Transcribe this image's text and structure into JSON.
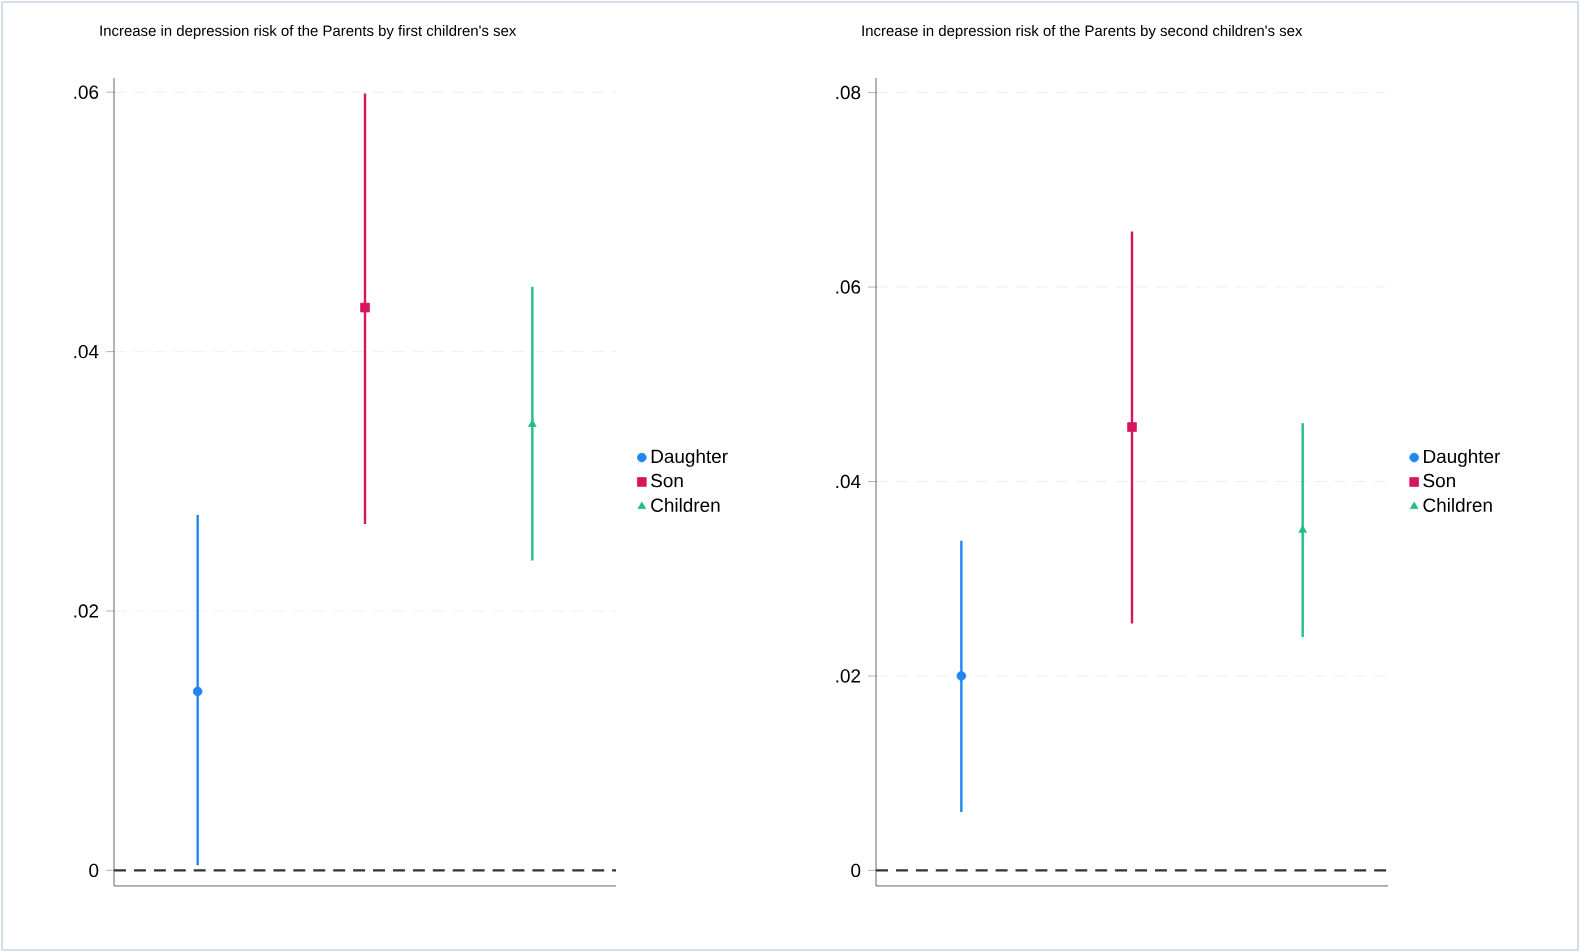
{
  "chart_data": [
    {
      "type": "scatter",
      "title": "Increase in depression risk of the Parents by first children's sex",
      "categories": [
        null,
        null,
        null
      ],
      "series": [
        {
          "name": "Daughter",
          "color": "#1f86f0",
          "marker": "circle",
          "values": [
            0.0138,
            null,
            null
          ],
          "errors": [
            [
              0.0004,
              0.0274
            ],
            null,
            null
          ]
        },
        {
          "name": "Son",
          "color": "#d5165e",
          "marker": "square",
          "values": [
            null,
            0.0434,
            null
          ],
          "errors": [
            null,
            [
              0.0267,
              0.0599
            ],
            null
          ]
        },
        {
          "name": "Children",
          "color": "#22bf85",
          "marker": "triangle",
          "values": [
            null,
            null,
            0.0344
          ],
          "errors": [
            null,
            null,
            [
              0.0239,
              0.045
            ]
          ]
        }
      ],
      "ylim": [
        -0.0012,
        0.0611
      ],
      "yticks": [
        0,
        {
          "value": 0.02,
          "label": ".02"
        },
        {
          "value": 0.04,
          "label": ".04"
        },
        {
          "value": 0.06,
          "label": ".06"
        }
      ],
      "grid": "y",
      "legend": "right",
      "ref_lines": [
        {
          "axis": "y",
          "value": 0,
          "color": "#333333",
          "line_style": "dashed"
        }
      ]
    },
    {
      "type": "scatter",
      "title": "Increase in depression risk of the Parents by second children's sex",
      "categories": [
        null,
        null,
        null
      ],
      "series": [
        {
          "name": "Daughter",
          "color": "#1f86f0",
          "marker": "circle",
          "values": [
            0.02,
            null,
            null
          ],
          "errors": [
            [
              0.006,
              0.0339
            ],
            null,
            null
          ]
        },
        {
          "name": "Son",
          "color": "#d5165e",
          "marker": "square",
          "values": [
            null,
            0.0456,
            null
          ],
          "errors": [
            null,
            [
              0.0254,
              0.0657
            ],
            null
          ]
        },
        {
          "name": "Children",
          "color": "#22bf85",
          "marker": "triangle",
          "values": [
            null,
            null,
            0.035
          ],
          "errors": [
            null,
            null,
            [
              0.024,
              0.046
            ]
          ]
        }
      ],
      "ylim": [
        -0.0016,
        0.0815
      ],
      "yticks": [
        0,
        {
          "value": 0.02,
          "label": ".02"
        },
        {
          "value": 0.04,
          "label": ".04"
        },
        {
          "value": 0.06,
          "label": ".06"
        },
        {
          "value": 0.08,
          "label": ".08"
        }
      ],
      "grid": "y",
      "legend": "right",
      "ref_lines": [
        {
          "axis": "y",
          "value": 0,
          "color": "#333333",
          "line_style": "dashed"
        }
      ]
    }
  ]
}
